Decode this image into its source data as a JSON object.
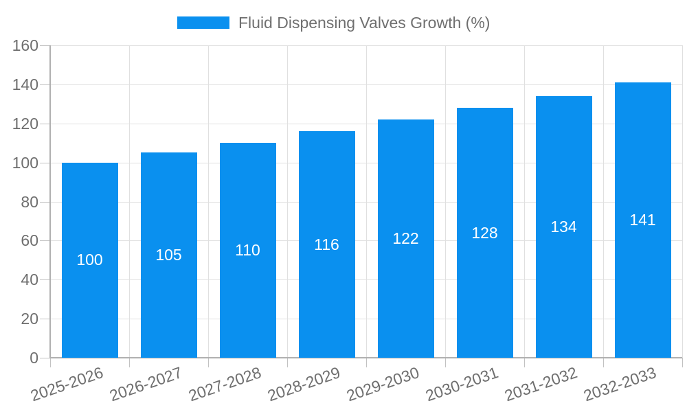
{
  "legend": {
    "label": "Fluid Dispensing Valves Growth (%)"
  },
  "colors": {
    "bar": "#0a90ef",
    "grid": "#e0e0e0",
    "axis_line": "#b0b0b0",
    "tick": "#c2c2c2",
    "axis_text": "#6e6e6e",
    "value_label": "#ffffff",
    "background": "#ffffff"
  },
  "chart_data": {
    "type": "bar",
    "title": "Fluid Dispensing Valves Growth (%)",
    "series_name": "Fluid Dispensing Valves Growth (%)",
    "categories": [
      "2025-2026",
      "2026-2027",
      "2027-2028",
      "2028-2029",
      "2029-2030",
      "2030-2031",
      "2031-2032",
      "2032-2033"
    ],
    "values": [
      100,
      105,
      110,
      116,
      122,
      128,
      134,
      141
    ],
    "xlabel": "",
    "ylabel": "",
    "ylim": [
      0,
      160
    ],
    "yticks": [
      0,
      20,
      40,
      60,
      80,
      100,
      120,
      140,
      160
    ],
    "grid": true,
    "legend_position": "top-center",
    "value_label_position": "inside-center",
    "x_label_rotation_deg": -19
  }
}
